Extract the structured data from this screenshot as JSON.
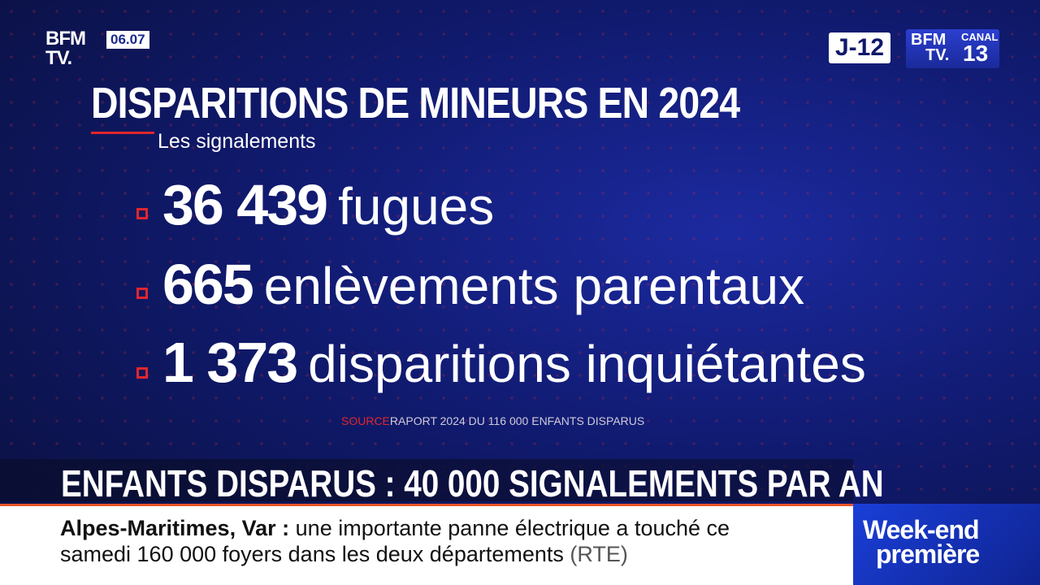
{
  "logo": {
    "brand": "BFM",
    "sub": "TV.",
    "time": "06.07"
  },
  "corner": {
    "countdown": "J-12",
    "brand": "BFM",
    "sub": "TV.",
    "channel_label": "CANAL",
    "channel_number": "13"
  },
  "title": "DISPARITIONS DE MINEURS EN 2024",
  "subtitle": "Les signalements",
  "items": [
    {
      "number": "36 439",
      "label": "fugues"
    },
    {
      "number": "665",
      "label": "enlèvements parentaux"
    },
    {
      "number": "1 373",
      "label": "disparitions inquiétantes"
    }
  ],
  "source": {
    "tag": "SOURCE",
    "text": "RAPORT 2024 DU 116 000 ENFANTS DISPARUS"
  },
  "headline": "ENFANTS DISPARUS : 40 000 SIGNALEMENTS PAR AN",
  "ticker": {
    "place": "Alpes-Maritimes, Var",
    "separator": ":",
    "line1": "une importante panne électrique a touché ce",
    "line2": "samedi 160 000 foyers dans les deux départements",
    "credit": "(RTE)"
  },
  "program": {
    "line1": "Week-end",
    "line2": "première"
  }
}
